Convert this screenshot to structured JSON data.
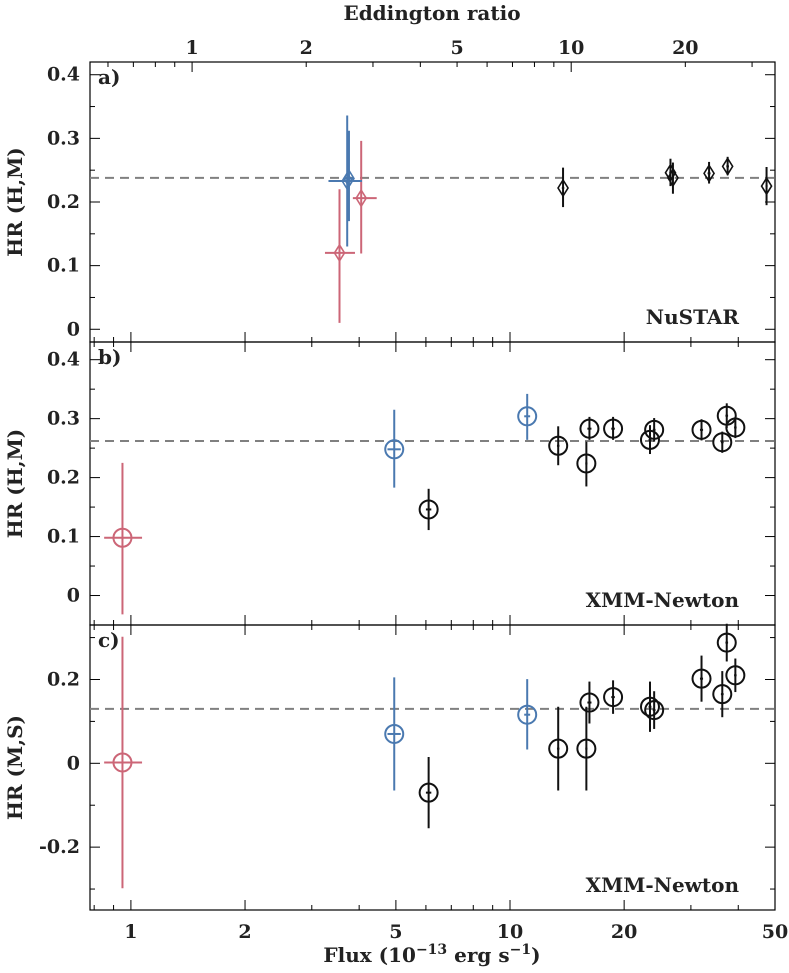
{
  "colors": {
    "red": "#cc6677",
    "blue": "#4a79b0",
    "black": "#111111",
    "ref_line": "#808080"
  },
  "figure": {
    "top_axis_label": "Eddington ratio",
    "x_axis_label": "Flux (10",
    "x_axis_exp": "−13",
    "x_axis_unit": " erg s",
    "x_axis_unit_exp": "−1",
    "x_axis_close": ")"
  },
  "chart_data": [
    {
      "type": "scatter",
      "panel": "a)",
      "instrument_label": "NuSTAR",
      "marker": "diamond",
      "ylabel": "HR (H,M)",
      "xlabel": "Flux (10^-13 erg s^-1)",
      "x_scale": "log",
      "xlim": [
        0.78,
        50
      ],
      "ylim": [
        -0.02,
        0.42
      ],
      "x_ticks": [
        1,
        2,
        5,
        10,
        20,
        50
      ],
      "y_ticks": [
        0,
        0.1,
        0.2,
        0.3,
        0.4
      ],
      "y_tick_labels": [
        "0",
        "0.1",
        "0.2",
        "0.3",
        "0.4"
      ],
      "reference_line": 0.238,
      "top_axis": {
        "label": "Eddington ratio",
        "ticks": [
          1,
          2,
          5,
          10,
          20
        ],
        "flux_per_ratio": 1.45
      },
      "points": [
        {
          "x": 3.55,
          "y": 0.12,
          "x_err": [
            0.3,
            0.35
          ],
          "y_err": [
            0.11,
            0.1
          ],
          "color": "red"
        },
        {
          "x": 4.05,
          "y": 0.206,
          "x_err": [
            0.2,
            0.4
          ],
          "y_err": [
            0.087,
            0.09
          ],
          "color": "red"
        },
        {
          "x": 3.72,
          "y": 0.233,
          "x_err": [
            0.4,
            0.35
          ],
          "y_err": [
            0.103,
            0.103
          ],
          "color": "blue"
        },
        {
          "x": 3.76,
          "y": 0.237,
          "x_err": [
            0.12,
            0.12
          ],
          "y_err": [
            0.067,
            0.075
          ],
          "color": "blue"
        },
        {
          "x": 13.8,
          "y": 0.222,
          "x_err": [
            0.1,
            0.1
          ],
          "y_err": [
            0.03,
            0.032
          ],
          "color": "black"
        },
        {
          "x": 26.5,
          "y": 0.246,
          "x_err": [
            0.2,
            0.2
          ],
          "y_err": [
            0.021,
            0.022
          ],
          "color": "black"
        },
        {
          "x": 26.9,
          "y": 0.238,
          "x_err": [
            0.2,
            0.2
          ],
          "y_err": [
            0.025,
            0.024
          ],
          "color": "black"
        },
        {
          "x": 33.5,
          "y": 0.245,
          "x_err": [
            0.3,
            0.3
          ],
          "y_err": [
            0.016,
            0.018
          ],
          "color": "black"
        },
        {
          "x": 37.5,
          "y": 0.256,
          "x_err": [
            0.3,
            0.3
          ],
          "y_err": [
            0.014,
            0.015
          ],
          "color": "black"
        },
        {
          "x": 47.5,
          "y": 0.225,
          "x_err": [
            0.3,
            0.3
          ],
          "y_err": [
            0.03,
            0.03
          ],
          "color": "black"
        }
      ]
    },
    {
      "type": "scatter",
      "panel": "b)",
      "instrument_label": "XMM-Newton",
      "marker": "circle",
      "ylabel": "HR (H,M)",
      "x_scale": "log",
      "xlim": [
        0.78,
        50
      ],
      "ylim": [
        -0.05,
        0.43
      ],
      "x_ticks": [
        1,
        2,
        5,
        10,
        20,
        50
      ],
      "y_ticks": [
        0,
        0.1,
        0.2,
        0.3,
        0.4
      ],
      "y_tick_labels": [
        "0",
        "0.1",
        "0.2",
        "0.3",
        "0.4"
      ],
      "reference_line": 0.262,
      "points": [
        {
          "x": 0.95,
          "y": 0.098,
          "x_err": [
            0.1,
            0.12
          ],
          "y_err": [
            0.13,
            0.127
          ],
          "color": "red"
        },
        {
          "x": 4.95,
          "y": 0.248,
          "x_err": [
            0.2,
            0.2
          ],
          "y_err": [
            0.065,
            0.067
          ],
          "color": "blue"
        },
        {
          "x": 11.1,
          "y": 0.304,
          "x_err": [
            0.2,
            0.2
          ],
          "y_err": [
            0.04,
            0.038
          ],
          "color": "blue"
        },
        {
          "x": 6.1,
          "y": 0.146,
          "x_err": [
            0.1,
            0.1
          ],
          "y_err": [
            0.035,
            0.035
          ],
          "color": "black"
        },
        {
          "x": 13.4,
          "y": 0.254,
          "x_err": [
            0.1,
            0.1
          ],
          "y_err": [
            0.033,
            0.033
          ],
          "color": "black"
        },
        {
          "x": 15.9,
          "y": 0.224,
          "x_err": [
            0.1,
            0.1
          ],
          "y_err": [
            0.039,
            0.037
          ],
          "color": "black"
        },
        {
          "x": 16.2,
          "y": 0.283,
          "x_err": [
            0.2,
            0.2
          ],
          "y_err": [
            0.019,
            0.02
          ],
          "color": "black"
        },
        {
          "x": 18.7,
          "y": 0.283,
          "x_err": [
            0.2,
            0.2
          ],
          "y_err": [
            0.019,
            0.02
          ],
          "color": "black"
        },
        {
          "x": 23.4,
          "y": 0.264,
          "x_err": [
            0.2,
            0.2
          ],
          "y_err": [
            0.024,
            0.025
          ],
          "color": "black"
        },
        {
          "x": 24.0,
          "y": 0.281,
          "x_err": [
            0.2,
            0.2
          ],
          "y_err": [
            0.02,
            0.02
          ],
          "color": "black"
        },
        {
          "x": 32.0,
          "y": 0.281,
          "x_err": [
            0.3,
            0.3
          ],
          "y_err": [
            0.018,
            0.018
          ],
          "color": "black"
        },
        {
          "x": 36.3,
          "y": 0.26,
          "x_err": [
            0.3,
            0.3
          ],
          "y_err": [
            0.018,
            0.018
          ],
          "color": "black"
        },
        {
          "x": 37.3,
          "y": 0.305,
          "x_err": [
            0.3,
            0.3
          ],
          "y_err": [
            0.021,
            0.021
          ],
          "color": "black"
        },
        {
          "x": 39.3,
          "y": 0.285,
          "x_err": [
            0.3,
            0.3
          ],
          "y_err": [
            0.018,
            0.018
          ],
          "color": "black"
        }
      ]
    },
    {
      "type": "scatter",
      "panel": "c)",
      "instrument_label": "XMM-Newton",
      "marker": "circle",
      "ylabel": "HR (M,S)",
      "xlabel": "Flux (10^-13 erg s^-1)",
      "x_scale": "log",
      "xlim": [
        0.78,
        50
      ],
      "ylim": [
        -0.35,
        0.33
      ],
      "x_ticks": [
        1,
        2,
        5,
        10,
        20,
        50
      ],
      "y_ticks": [
        -0.2,
        0,
        0.2
      ],
      "y_tick_labels": [
        "-0.2",
        "0",
        "0.2"
      ],
      "reference_line": 0.13,
      "points": [
        {
          "x": 0.95,
          "y": 0.002,
          "x_err": [
            0.1,
            0.12
          ],
          "y_err": [
            0.3,
            0.3
          ],
          "color": "red"
        },
        {
          "x": 4.95,
          "y": 0.07,
          "x_err": [
            0.2,
            0.2
          ],
          "y_err": [
            0.135,
            0.135
          ],
          "color": "blue"
        },
        {
          "x": 11.1,
          "y": 0.116,
          "x_err": [
            0.2,
            0.2
          ],
          "y_err": [
            0.083,
            0.085
          ],
          "color": "blue"
        },
        {
          "x": 6.1,
          "y": -0.07,
          "x_err": [
            0.1,
            0.1
          ],
          "y_err": [
            0.085,
            0.085
          ],
          "color": "black"
        },
        {
          "x": 13.4,
          "y": 0.035,
          "x_err": [
            0.1,
            0.1
          ],
          "y_err": [
            0.1,
            0.1
          ],
          "color": "black"
        },
        {
          "x": 15.9,
          "y": 0.035,
          "x_err": [
            0.1,
            0.1
          ],
          "y_err": [
            0.1,
            0.1
          ],
          "color": "black"
        },
        {
          "x": 16.2,
          "y": 0.145,
          "x_err": [
            0.2,
            0.2
          ],
          "y_err": [
            0.05,
            0.05
          ],
          "color": "black"
        },
        {
          "x": 18.7,
          "y": 0.158,
          "x_err": [
            0.2,
            0.2
          ],
          "y_err": [
            0.04,
            0.04
          ],
          "color": "black"
        },
        {
          "x": 23.4,
          "y": 0.135,
          "x_err": [
            0.2,
            0.2
          ],
          "y_err": [
            0.06,
            0.06
          ],
          "color": "black"
        },
        {
          "x": 24.0,
          "y": 0.127,
          "x_err": [
            0.2,
            0.2
          ],
          "y_err": [
            0.045,
            0.045
          ],
          "color": "black"
        },
        {
          "x": 32.0,
          "y": 0.202,
          "x_err": [
            0.3,
            0.3
          ],
          "y_err": [
            0.055,
            0.055
          ],
          "color": "black"
        },
        {
          "x": 36.3,
          "y": 0.165,
          "x_err": [
            0.3,
            0.3
          ],
          "y_err": [
            0.055,
            0.055
          ],
          "color": "black"
        },
        {
          "x": 37.3,
          "y": 0.288,
          "x_err": [
            0.3,
            0.3
          ],
          "y_err": [
            0.045,
            0.045
          ],
          "color": "black"
        },
        {
          "x": 39.3,
          "y": 0.21,
          "x_err": [
            0.3,
            0.3
          ],
          "y_err": [
            0.04,
            0.04
          ],
          "color": "black"
        }
      ]
    }
  ]
}
